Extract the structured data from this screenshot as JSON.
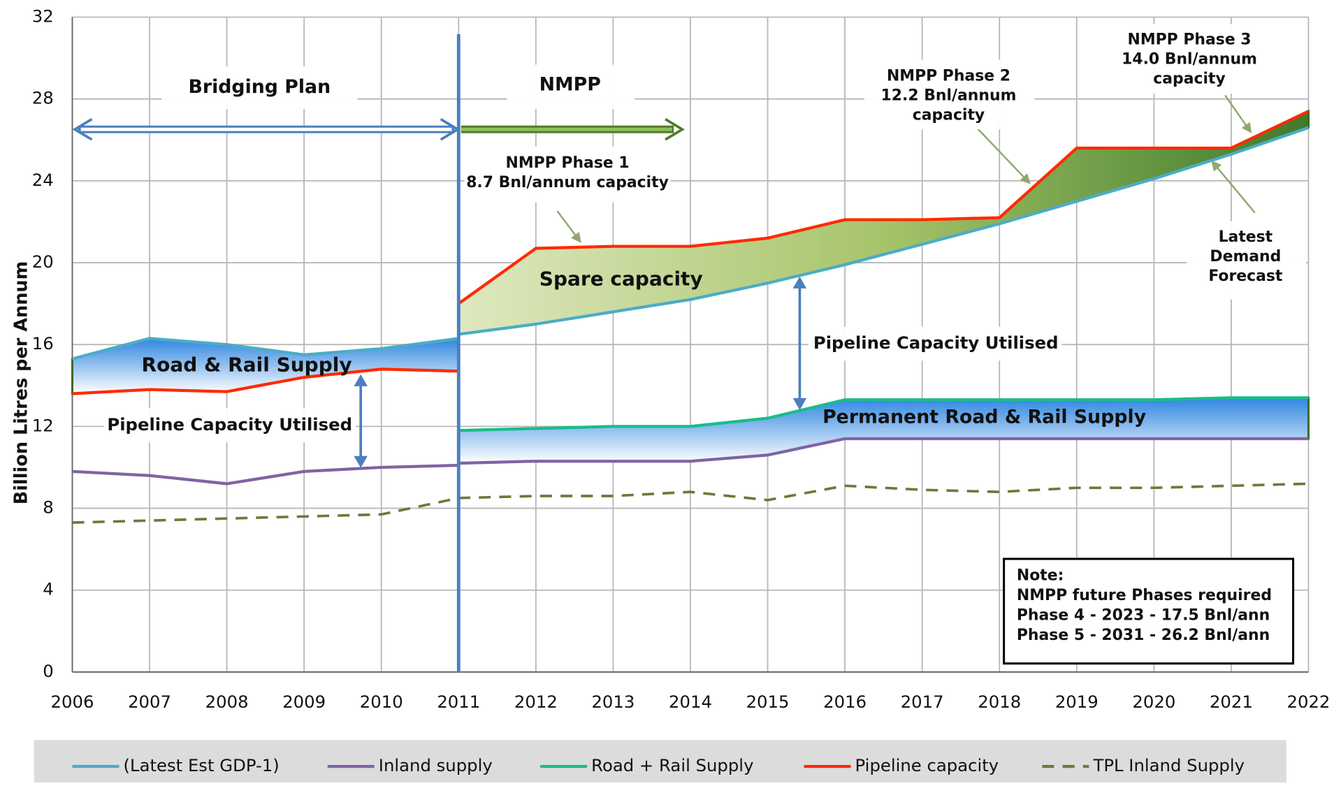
{
  "chart_data": {
    "type": "line",
    "y_label": "Billion Litres per Annum",
    "x": [
      2006,
      2007,
      2008,
      2009,
      2010,
      2011,
      2011,
      2012,
      2013,
      2014,
      2015,
      2016,
      2017,
      2018,
      2019,
      2020,
      2021,
      2022
    ],
    "xlim": [
      2006,
      2022
    ],
    "xticks": [
      2006,
      2007,
      2008,
      2009,
      2010,
      2011,
      2012,
      2013,
      2014,
      2015,
      2016,
      2017,
      2018,
      2019,
      2020,
      2021,
      2022
    ],
    "ylim": [
      0,
      32
    ],
    "yticks": [
      0,
      4,
      8,
      12,
      16,
      20,
      24,
      28,
      32
    ],
    "grid": true,
    "legend": "bottom",
    "series": [
      {
        "name": "(Latest Est GDP-1)",
        "color": "#4bacc6",
        "values": [
          15.3,
          16.3,
          16.0,
          15.5,
          15.8,
          16.3,
          16.5,
          17.0,
          17.6,
          18.2,
          19.0,
          19.9,
          20.9,
          21.9,
          23.0,
          24.1,
          25.3,
          26.6
        ]
      },
      {
        "name": "Inland supply",
        "color": "#8064a2",
        "values": [
          9.8,
          9.6,
          9.2,
          9.8,
          10.0,
          10.1,
          10.2,
          10.3,
          10.3,
          10.3,
          10.6,
          11.4,
          11.4,
          11.4,
          11.4,
          11.4,
          11.4,
          11.4
        ]
      },
      {
        "name": "Road + Rail Supply",
        "color": "#1abc8c",
        "values": [
          null,
          null,
          null,
          null,
          null,
          null,
          11.8,
          11.9,
          12.0,
          12.0,
          12.4,
          13.3,
          13.3,
          13.3,
          13.3,
          13.3,
          13.4,
          13.4
        ]
      },
      {
        "name": "Pipeline capacity",
        "color": "#ff2a00",
        "values": [
          13.6,
          13.8,
          13.7,
          14.4,
          14.8,
          14.7,
          18.0,
          20.7,
          20.8,
          20.8,
          21.2,
          22.1,
          22.1,
          22.2,
          25.6,
          25.6,
          25.6,
          27.4
        ]
      },
      {
        "name": "TPL Inland Supply",
        "color": "#6b7a3a",
        "dashed": true,
        "values": [
          7.3,
          7.4,
          7.5,
          7.6,
          7.7,
          8.5,
          8.5,
          8.6,
          8.6,
          8.8,
          8.4,
          9.1,
          8.9,
          8.8,
          9.0,
          9.0,
          9.1,
          9.2
        ]
      }
    ],
    "annotations": [
      [
        "Bridging Plan"
      ],
      [
        "NMPP"
      ],
      [
        "NMPP Phase 1",
        "8.7 Bnl/annum capacity"
      ],
      [
        "NMPP Phase 2",
        "12.2 Bnl/annum",
        "capacity"
      ],
      [
        "NMPP Phase 3",
        "14.0 Bnl/annum",
        "capacity"
      ],
      [
        "Latest",
        "Demand",
        "Forecast"
      ],
      [
        "Spare capacity"
      ],
      [
        "Road & Rail Supply"
      ],
      [
        "Pipeline Capacity Utilised"
      ],
      [
        "Pipeline Capacity Utilised"
      ],
      [
        "Permanent Road & Rail Supply"
      ]
    ],
    "note": [
      "Note:",
      "NMPP future Phases required",
      "Phase 4 - 2023 - 17.5 Bnl/ann",
      "Phase 5 - 2031 - 26.2 Bnl/ann"
    ]
  }
}
